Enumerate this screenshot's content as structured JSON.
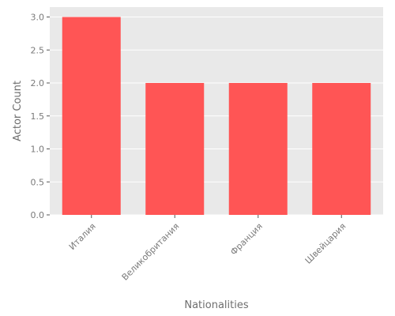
{
  "chart_data": {
    "type": "bar",
    "categories": [
      "Италия",
      "Великобритания",
      "Франция",
      "Швейцария"
    ],
    "values": [
      3,
      2,
      2,
      2
    ],
    "xlabel": "Nationalities",
    "ylabel": "Actor Count",
    "ylim": [
      0,
      3.15
    ],
    "yticks": [
      "0.0",
      "0.5",
      "1.0",
      "1.5",
      "2.0",
      "2.5",
      "3.0"
    ],
    "grid": true,
    "legend": "none",
    "colors": {
      "bar": "#ff5555",
      "plot_background": "#e9e9e9",
      "grid": "#ffffff"
    }
  }
}
